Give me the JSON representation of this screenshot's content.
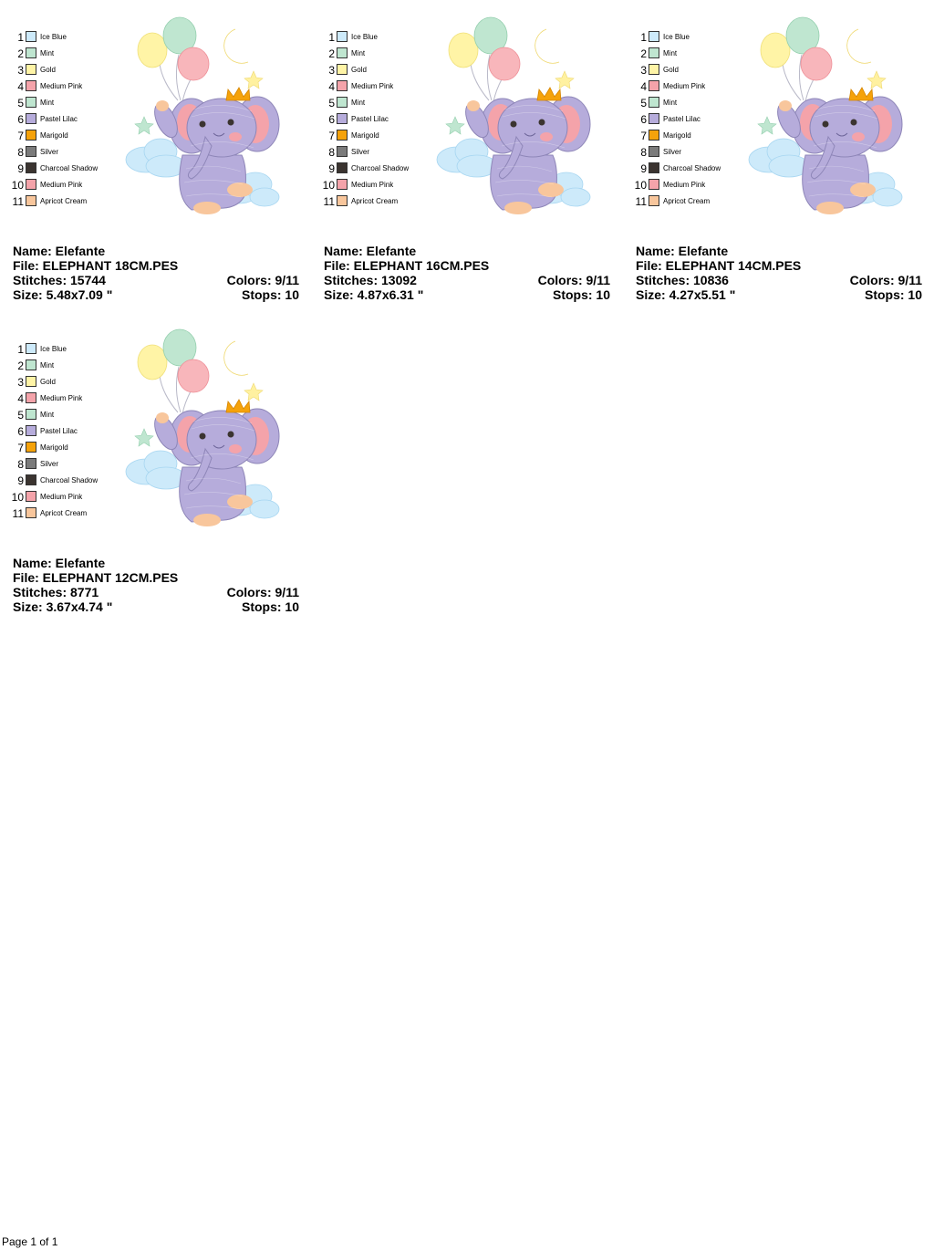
{
  "thread_palette": [
    {
      "num": "1",
      "name": "Ice Blue",
      "color": "#cdeafa"
    },
    {
      "num": "2",
      "name": "Mint",
      "color": "#bfe6d0"
    },
    {
      "num": "3",
      "name": "Gold",
      "color": "#fff4a6"
    },
    {
      "num": "4",
      "name": "Medium Pink",
      "color": "#f4a3aa"
    },
    {
      "num": "5",
      "name": "Mint",
      "color": "#bfe6d0"
    },
    {
      "num": "6",
      "name": "Pastel Lilac",
      "color": "#b6acdb"
    },
    {
      "num": "7",
      "name": "Marigold",
      "color": "#f5a20a"
    },
    {
      "num": "8",
      "name": "Silver",
      "color": "#7b7b7b"
    },
    {
      "num": "9",
      "name": "Charcoal Shadow",
      "color": "#3b3430"
    },
    {
      "num": "10",
      "name": "Medium Pink",
      "color": "#f4a3aa"
    },
    {
      "num": "11",
      "name": "Apricot Cream",
      "color": "#f8c69c"
    }
  ],
  "designs": [
    {
      "name": "Name: Elefante",
      "file": "File: ELEPHANT 18CM.PES",
      "stitches": "Stitches: 15744",
      "colors": "Colors: 9/11",
      "size": "Size: 5.48x7.09 \"",
      "stops": "Stops: 10"
    },
    {
      "name": "Name: Elefante",
      "file": "File: ELEPHANT 16CM.PES",
      "stitches": "Stitches: 13092",
      "colors": "Colors: 9/11",
      "size": "Size: 4.87x6.31 \"",
      "stops": "Stops: 10"
    },
    {
      "name": "Name: Elefante",
      "file": "File: ELEPHANT 14CM.PES",
      "stitches": "Stitches: 10836",
      "colors": "Colors: 9/11",
      "size": "Size: 4.27x5.51 \"",
      "stops": "Stops: 10"
    },
    {
      "name": "Name: Elefante",
      "file": "File: ELEPHANT 12CM.PES",
      "stitches": "Stitches: 8771",
      "colors": "Colors: 9/11",
      "size": "Size: 3.67x4.74 \"",
      "stops": "Stops: 10"
    }
  ],
  "footer": {
    "page": "Page 1 of 1"
  }
}
